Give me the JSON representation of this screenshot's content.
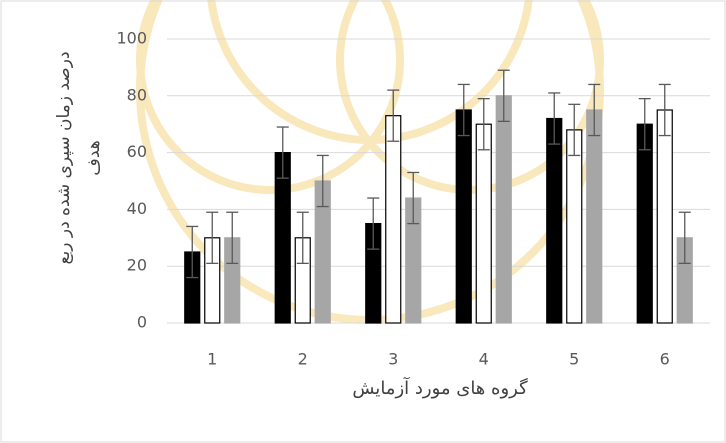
{
  "chart_data": {
    "type": "bar",
    "y_label": "درصد زمان سپری شده در ربع هدف",
    "x_label": "گروه های مورد آزمایش",
    "categories": [
      "1",
      "2",
      "3",
      "4",
      "5",
      "6"
    ],
    "series": [
      {
        "color": "#000000",
        "stroke": "#000000",
        "values": [
          25,
          60,
          35,
          75,
          72,
          70
        ],
        "errors": [
          9,
          9,
          9,
          9,
          9,
          9
        ]
      },
      {
        "color": "#ffffff",
        "stroke": "#000000",
        "values": [
          30,
          30,
          73,
          70,
          68,
          75
        ],
        "errors": [
          9,
          9,
          9,
          9,
          9,
          9
        ]
      },
      {
        "color": "#a6a6a6",
        "stroke": "#a6a6a6",
        "values": [
          30,
          50,
          44,
          80,
          75,
          30
        ],
        "errors": [
          9,
          9,
          9,
          9,
          9,
          9
        ]
      }
    ],
    "ylim": [
      0,
      100
    ],
    "yticks": [
      0,
      20,
      40,
      60,
      80,
      100
    ],
    "grid": true
  }
}
